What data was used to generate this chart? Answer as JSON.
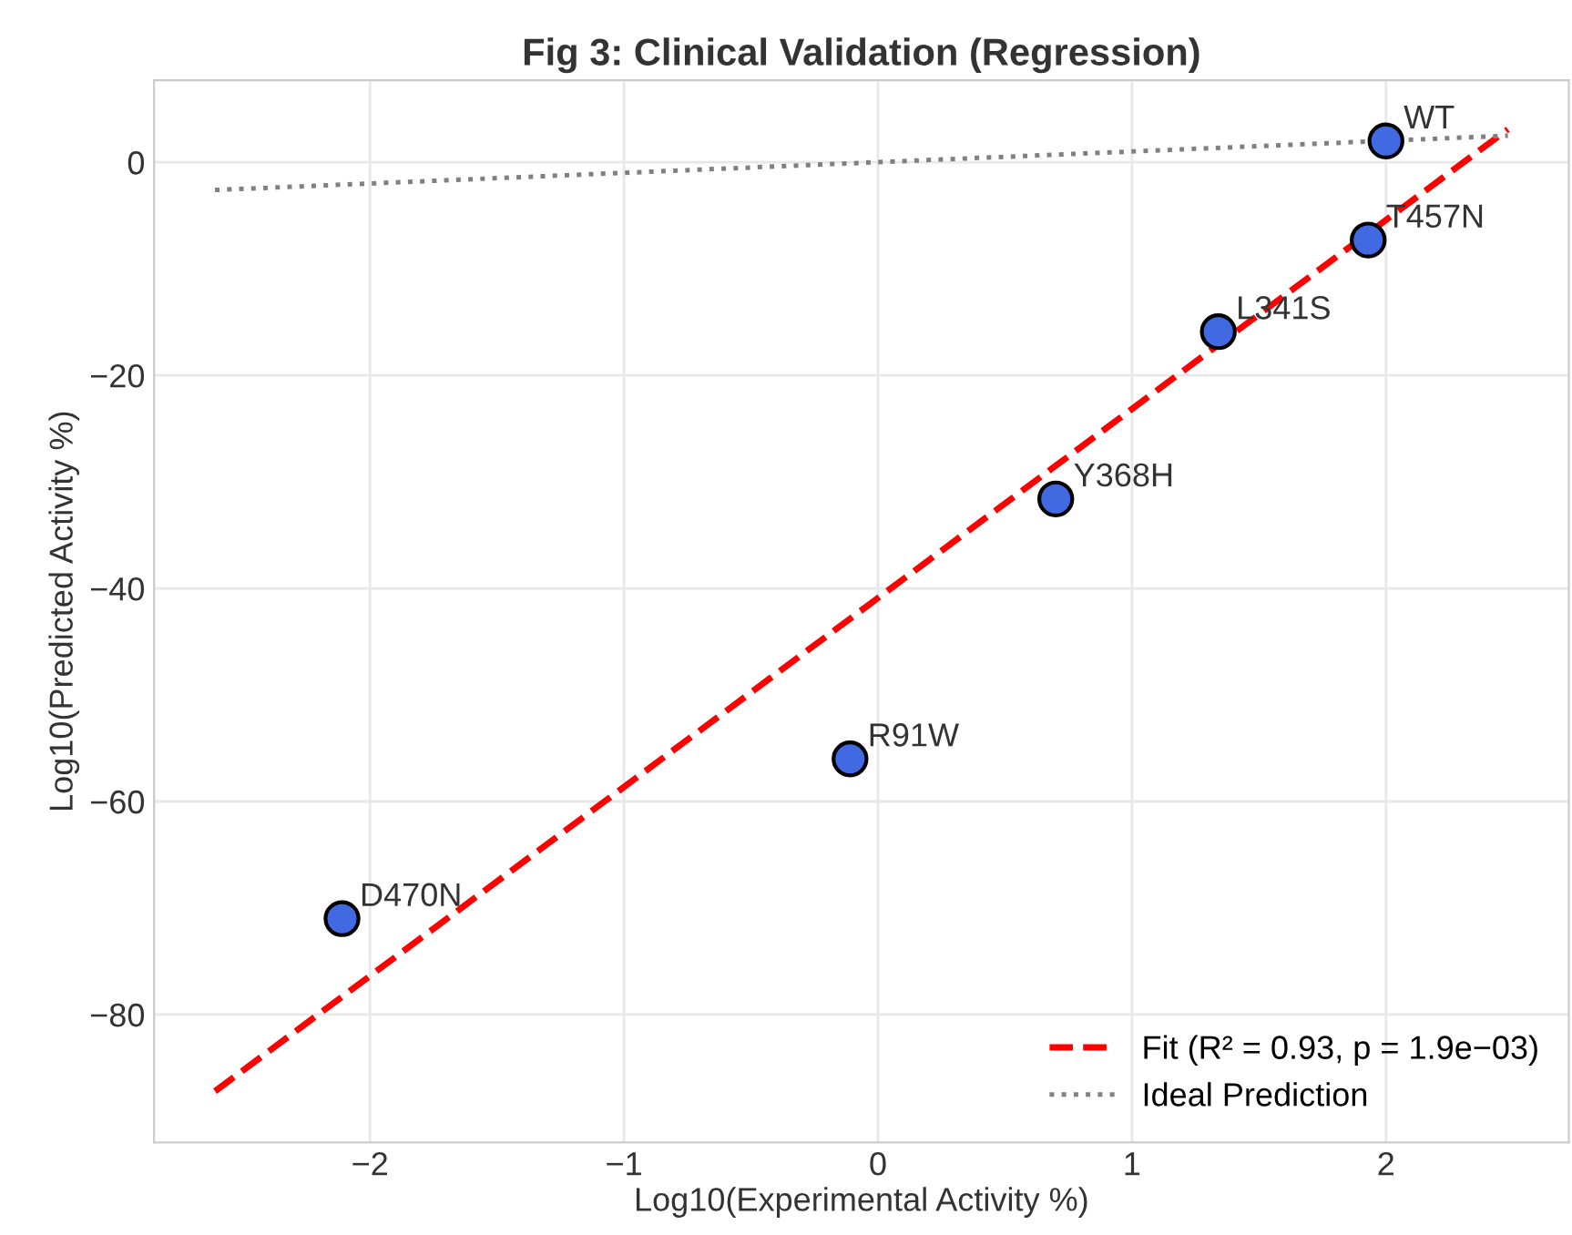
{
  "chart_data": {
    "type": "scatter",
    "title": "Fig 3: Clinical Validation (Regression)",
    "xlabel": "Log10(Experimental Activity %)",
    "ylabel": "Log10(Predicted Activity %)",
    "xlim": [
      -2.85,
      2.72
    ],
    "ylim": [
      -92,
      7.7
    ],
    "xticks": [
      {
        "value": -2,
        "label": "−2"
      },
      {
        "value": -1,
        "label": "−1"
      },
      0,
      1,
      2
    ],
    "yticks": [
      {
        "value": -80,
        "label": "−80"
      },
      {
        "value": -60,
        "label": "−60"
      },
      {
        "value": -40,
        "label": "−40"
      },
      {
        "value": -20,
        "label": "−20"
      },
      0
    ],
    "grid": true,
    "legend": "bottom right",
    "series": [
      {
        "color": "#4169e1",
        "marker": "circle",
        "x": [
          2.0,
          1.93,
          1.34,
          0.7,
          -0.11,
          -2.11
        ],
        "values": [
          2,
          -7.3,
          -15.9,
          -31.6,
          -56,
          -71
        ]
      },
      {
        "type": "line",
        "name": "Fit (R² = 0.93, p = 1.9e−03)",
        "color": "#ff0000",
        "line_style": "dashed",
        "x": [
          -2.61,
          2.48
        ],
        "values": [
          -87.2,
          3.1
        ]
      },
      {
        "type": "line",
        "name": "Ideal Prediction",
        "color": "#808080",
        "line_style": "dotted",
        "x": [
          -2.61,
          2.48
        ],
        "values": [
          -2.6,
          2.5
        ]
      }
    ],
    "annotations": [
      {
        "text": "WT",
        "x": 2.0,
        "y": 2
      },
      {
        "text": "T457N",
        "x": 1.93,
        "y": -7.3
      },
      {
        "text": "L341S",
        "x": 1.34,
        "y": -15.9
      },
      {
        "text": "Y368H",
        "x": 0.7,
        "y": -31.6
      },
      {
        "text": "R91W",
        "x": -0.11,
        "y": -56
      },
      {
        "text": "D470N",
        "x": -2.11,
        "y": -71
      }
    ]
  }
}
